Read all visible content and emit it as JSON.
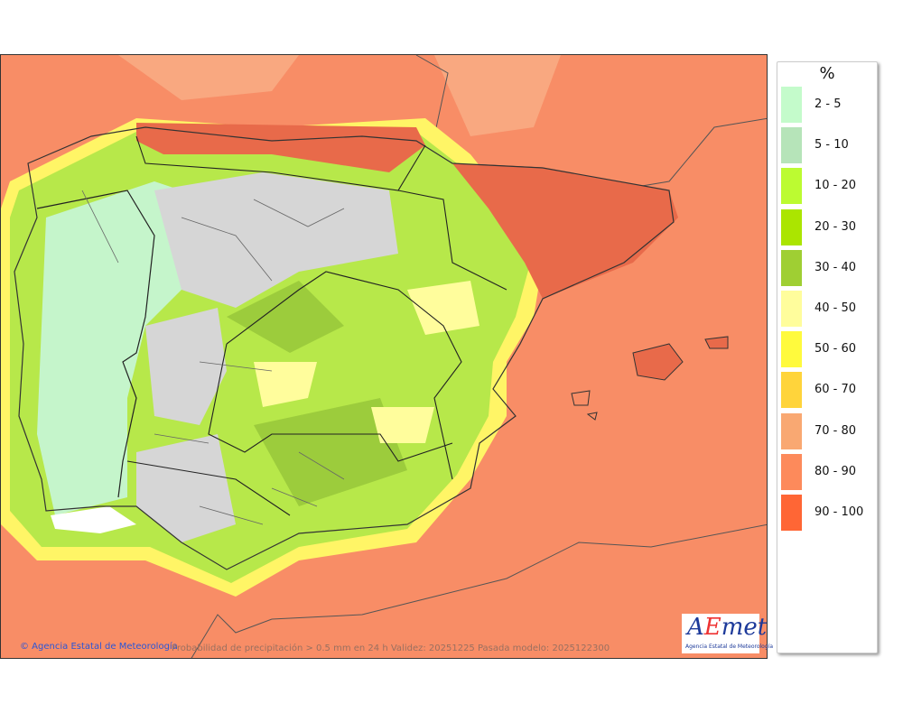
{
  "map": {
    "sea_color": "#f88d66",
    "land_colors": {
      "light": "#c5f5cb",
      "grey": "#d6d6d6",
      "green": "#b7e84a",
      "dark_green": "#9ccc3c",
      "halo": "#fff566",
      "red": "#e86a4a"
    }
  },
  "footer": {
    "credit": "© Agencia Estatal de Meteorología",
    "caption": "Probabilidad de precipitación > 0.5 mm en 24 h Validez: 20251225 Pasada modelo: 2025122300"
  },
  "logo": {
    "text": "AEmet",
    "subtitle": "Agencia Estatal de Meteorología"
  },
  "legend": {
    "unit": "%",
    "items": [
      {
        "label": "2 - 5",
        "color": "#c4fbcb"
      },
      {
        "label": "5 - 10",
        "color": "#b6e4b9"
      },
      {
        "label": "10 - 20",
        "color": "#bcfb31"
      },
      {
        "label": "20 - 30",
        "color": "#abe500"
      },
      {
        "label": "30 - 40",
        "color": "#9fcf33"
      },
      {
        "label": "40 - 50",
        "color": "#fffd9c"
      },
      {
        "label": "50 - 60",
        "color": "#fffa3d"
      },
      {
        "label": "60 - 70",
        "color": "#ffd43b"
      },
      {
        "label": "70 - 80",
        "color": "#f9a872"
      },
      {
        "label": "80 - 90",
        "color": "#fd8a5b"
      },
      {
        "label": "90 - 100",
        "color": "#ff6635"
      }
    ]
  }
}
